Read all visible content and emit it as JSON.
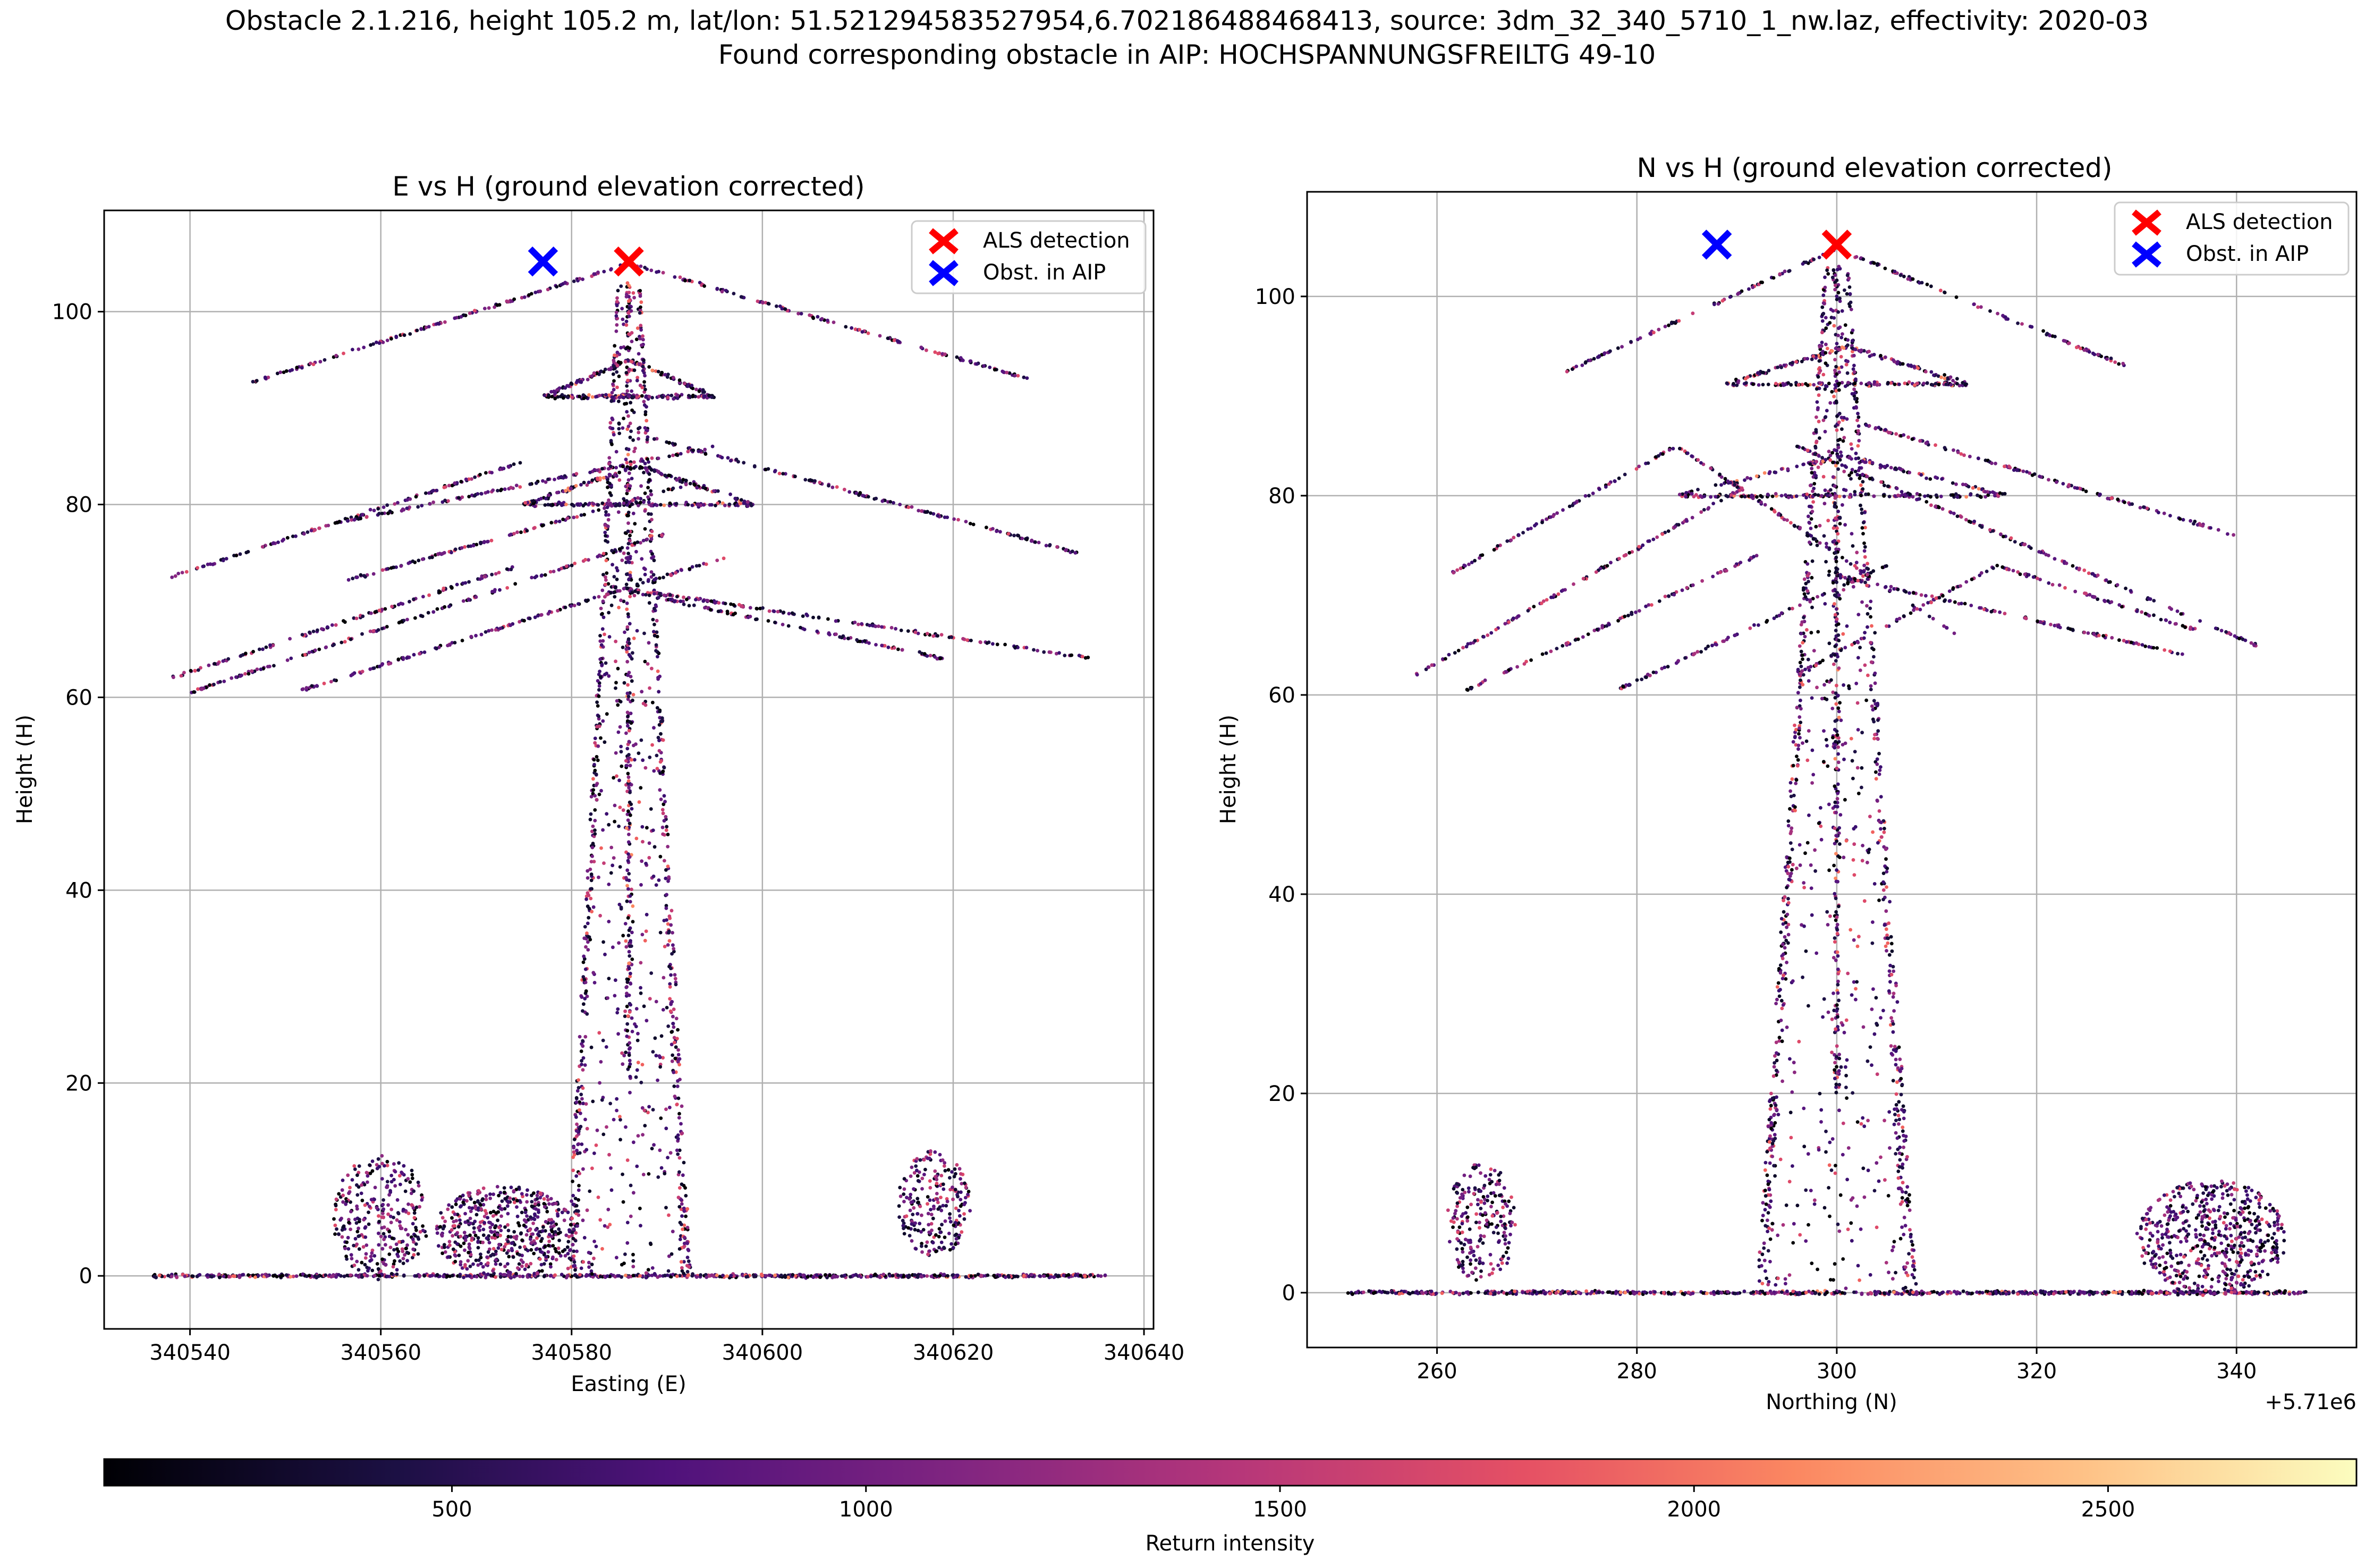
{
  "figure": {
    "title_line1": "Obstacle 2.1.216, height 105.2 m, lat/lon: 51.521294583527954,6.702186488468413, source: 3dm_32_340_5710_1_nw.laz, effectivity: 2020-03",
    "title_line2": "Found corresponding obstacle in AIP: HOCHSPANNUNGSFREILTG 49-10"
  },
  "colorbar": {
    "label": "Return intensity",
    "colormap": "magma",
    "range": [
      80,
      2800
    ],
    "ticks": [
      "500",
      "1000",
      "1500",
      "2000",
      "2500"
    ],
    "tick_values": [
      500,
      1000,
      1500,
      2000,
      2500
    ]
  },
  "chart_data": [
    {
      "type": "scatter",
      "title": "E vs H (ground elevation corrected)",
      "xlabel": "Easting (E)",
      "ylabel": "Height (H)",
      "xlim": [
        340531,
        340641
      ],
      "ylim": [
        -5.5,
        110.5
      ],
      "xticks": [
        340540,
        340560,
        340580,
        340600,
        340620,
        340640
      ],
      "xtick_labels": [
        "340540",
        "340560",
        "340580",
        "340600",
        "340620",
        "340640"
      ],
      "yticks": [
        0,
        20,
        40,
        60,
        80,
        100
      ],
      "ytick_labels": [
        "0",
        "20",
        "40",
        "60",
        "80",
        "100"
      ],
      "offset_label": "",
      "grid": true,
      "legend_position": "top-right",
      "markers": [
        {
          "name": "ALS detection",
          "color": "#ff0000",
          "x": 340586,
          "y": 105.2
        },
        {
          "name": "Obst. in AIP",
          "color": "#0000ff",
          "x": 340577,
          "y": 105.2
        }
      ],
      "tower": {
        "center": 340586,
        "base_half_width": 6.5,
        "top_half_width": 1.2,
        "base_y": 0,
        "top_y": 103
      },
      "arms": [
        {
          "y": 91.2,
          "left": 340577,
          "right": 340595,
          "peak_y": 95
        },
        {
          "y": 80,
          "left": 340575,
          "right": 340599,
          "peak_y": 84
        }
      ],
      "wires": [
        {
          "x1": 340546,
          "y1": 92.5,
          "x2": 340586,
          "y2": 105.0
        },
        {
          "x1": 340586,
          "y1": 105.0,
          "x2": 340628,
          "y2": 93.0
        },
        {
          "x1": 340538,
          "y1": 72.5,
          "x2": 340575,
          "y2": 84.5
        },
        {
          "x1": 340588,
          "y1": 87,
          "x2": 340633,
          "y2": 75.0
        },
        {
          "x1": 340538,
          "y1": 62,
          "x2": 340574,
          "y2": 73.5
        },
        {
          "x1": 340540,
          "y1": 60.5,
          "x2": 340590,
          "y2": 77
        },
        {
          "x1": 340551,
          "y1": 60.5,
          "x2": 340596,
          "y2": 74.5
        },
        {
          "x1": 340555,
          "y1": 78,
          "x2": 340595,
          "y2": 86
        },
        {
          "x1": 340584,
          "y1": 71.5,
          "x2": 340635,
          "y2": 64
        },
        {
          "x1": 340586,
          "y1": 71,
          "x2": 340619,
          "y2": 64.0
        },
        {
          "x1": 340556,
          "y1": 72,
          "x2": 340592,
          "y2": 82
        }
      ],
      "ground": {
        "from": 340536,
        "to": 340636,
        "y": 0
      },
      "vegetation": [
        {
          "cx": 340560,
          "cy": 6,
          "rx": 5,
          "ry": 6.5,
          "n": 300
        },
        {
          "cx": 340573,
          "cy": 4.5,
          "rx": 7.5,
          "ry": 4.8,
          "n": 520
        },
        {
          "cx": 340618,
          "cy": 7.5,
          "rx": 3.8,
          "ry": 5.5,
          "n": 230
        }
      ]
    },
    {
      "type": "scatter",
      "title": "N vs H (ground elevation corrected)",
      "xlabel": "Northing (N)",
      "ylabel": "Height (H)",
      "xlim": [
        5710247,
        5710352
      ],
      "ylim": [
        -5.5,
        110.5
      ],
      "xticks": [
        5710260,
        5710280,
        5710300,
        5710320,
        5710340
      ],
      "xtick_labels": [
        "260",
        "280",
        "300",
        "320",
        "340"
      ],
      "yticks": [
        0,
        20,
        40,
        60,
        80,
        100
      ],
      "ytick_labels": [
        "0",
        "20",
        "40",
        "60",
        "80",
        "100"
      ],
      "offset_label": "+5.71e6",
      "grid": true,
      "legend_position": "top-right",
      "markers": [
        {
          "name": "ALS detection",
          "color": "#ff0000",
          "x": 5710300,
          "y": 105.2
        },
        {
          "name": "Obst. in AIP",
          "color": "#0000ff",
          "x": 5710288,
          "y": 105.2
        }
      ],
      "tower": {
        "center": 5710300,
        "base_half_width": 8,
        "top_half_width": 1.2,
        "base_y": 0,
        "top_y": 103
      },
      "arms": [
        {
          "y": 91.2,
          "left": 5710289,
          "right": 5710313,
          "peak_y": 95
        },
        {
          "y": 80,
          "left": 5710284,
          "right": 5710317,
          "peak_y": 84
        }
      ],
      "wires": [
        {
          "x1": 5710273,
          "y1": 92.5,
          "x2": 5710300,
          "y2": 104.8
        },
        {
          "x1": 5710300,
          "y1": 104.8,
          "x2": 5710329,
          "y2": 93.0
        },
        {
          "x1": 5710261,
          "y1": 72,
          "x2": 5710284,
          "y2": 85
        },
        {
          "x1": 5710284,
          "y1": 85,
          "x2": 5710312,
          "y2": 66
        },
        {
          "x1": 5710257,
          "y1": 61.5,
          "x2": 5710291,
          "y2": 81
        },
        {
          "x1": 5710263,
          "y1": 60.5,
          "x2": 5710292,
          "y2": 74
        },
        {
          "x1": 5710278,
          "y1": 60.5,
          "x2": 5710305,
          "y2": 73
        },
        {
          "x1": 5710296,
          "y1": 62,
          "x2": 5710316,
          "y2": 73
        },
        {
          "x1": 5710300,
          "y1": 88,
          "x2": 5710340,
          "y2": 76
        },
        {
          "x1": 5710296,
          "y1": 85,
          "x2": 5710343,
          "y2": 64.5
        },
        {
          "x1": 5710300,
          "y1": 72,
          "x2": 5710335,
          "y2": 64
        },
        {
          "x1": 5710316,
          "y1": 73,
          "x2": 5710336,
          "y2": 66.5
        }
      ],
      "ground": {
        "from": 5710251,
        "to": 5710347,
        "y": 0
      },
      "vegetation": [
        {
          "cx": 5710264.5,
          "cy": 7,
          "rx": 3.5,
          "ry": 6,
          "n": 220
        },
        {
          "cx": 5710337.5,
          "cy": 5.5,
          "rx": 7.5,
          "ry": 5.8,
          "n": 560
        }
      ]
    }
  ]
}
